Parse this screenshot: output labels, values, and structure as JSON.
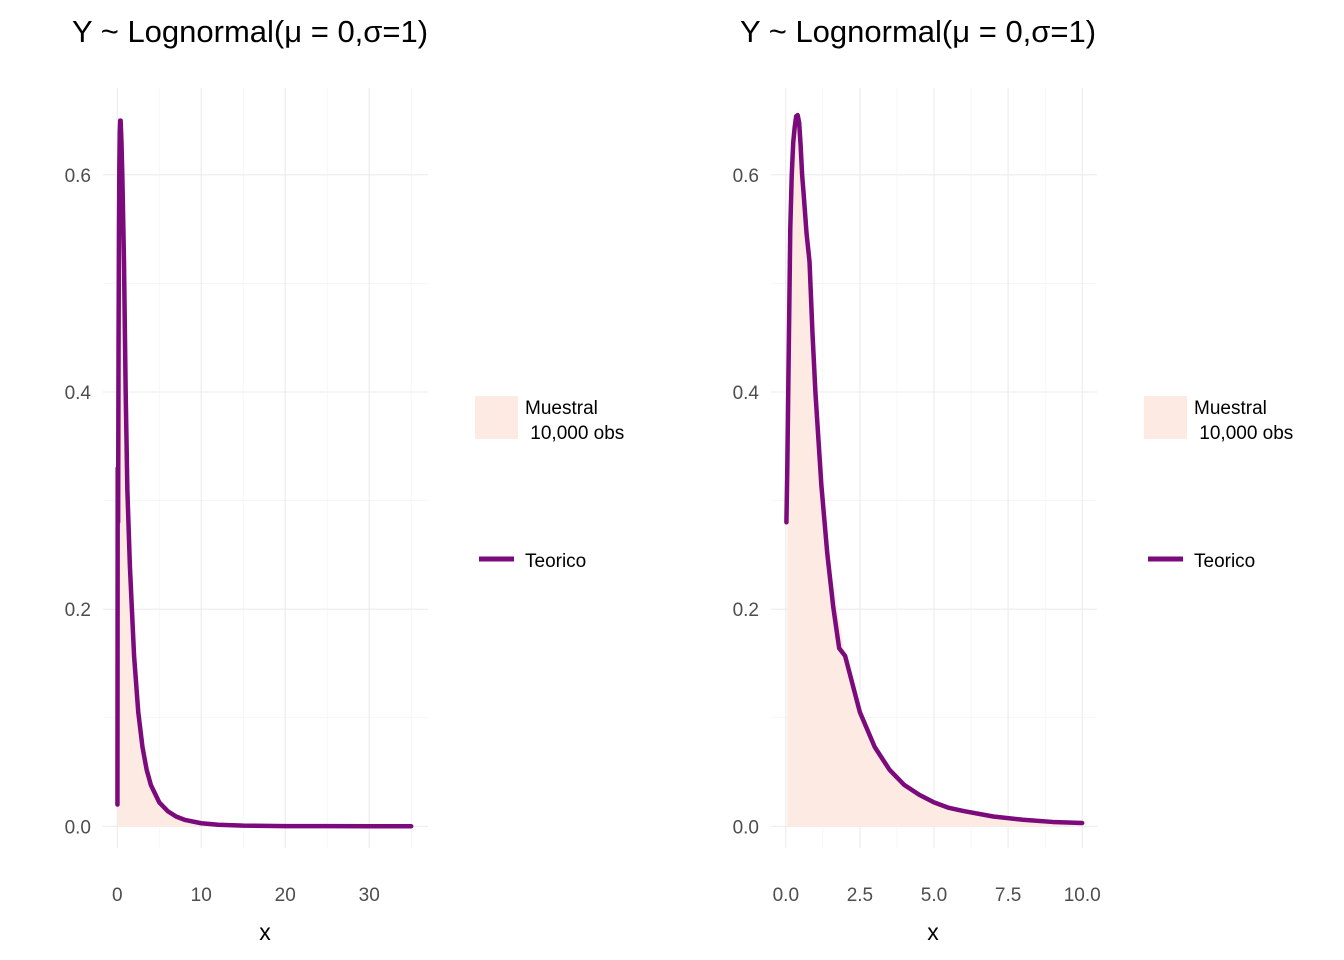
{
  "colors": {
    "histogram_fill": "#FDEAE2",
    "curve": "#7B0A7C",
    "grid": "#EBEBEB",
    "tick_text": "#4D4D4D"
  },
  "legend_labels": {
    "sample_line1": "Muestral",
    "sample_line2": " 10,000 obs",
    "theory": "Teorico"
  },
  "chart_data": [
    {
      "type": "area",
      "title": "Y ~ Lognormal(μ = 0,σ=1)",
      "xlabel": "x",
      "ylabel": "",
      "xlim": [
        -1.7,
        37
      ],
      "ylim": [
        -0.02,
        0.68
      ],
      "xticks": [
        0,
        10,
        20,
        30
      ],
      "xtick_labels": [
        "0",
        "10",
        "20",
        "30"
      ],
      "yticks": [
        0.0,
        0.2,
        0.4,
        0.6
      ],
      "ytick_labels": [
        "0.0",
        "0.2",
        "0.4",
        "0.6"
      ],
      "grid": true,
      "legend_position": "right",
      "series": [
        {
          "name": "Muestral\n 10,000 obs",
          "kind": "histogram",
          "x": [
            0.02,
            0.1,
            0.2,
            0.3,
            0.4,
            0.5,
            0.6,
            0.8,
            1.0,
            1.3,
            1.6,
            2.0,
            2.5,
            3.0,
            3.5,
            4.0,
            5.0,
            6.0,
            8.0,
            10.0,
            15.0,
            20.0,
            25.0,
            30.0,
            35.0
          ],
          "y": [
            0.05,
            0.32,
            0.55,
            0.62,
            0.65,
            0.63,
            0.6,
            0.51,
            0.4,
            0.28,
            0.2,
            0.157,
            0.106,
            0.073,
            0.052,
            0.038,
            0.022,
            0.013,
            0.005,
            0.002,
            0.0005,
            0.0001,
            0.0,
            0.0,
            0.0
          ]
        },
        {
          "name": "Teorico",
          "kind": "line",
          "x": [
            0.02,
            0.05,
            0.1,
            0.15,
            0.2,
            0.25,
            0.3,
            0.35,
            0.4,
            0.5,
            0.6,
            0.7,
            0.8,
            1.0,
            1.2,
            1.5,
            2.0,
            2.5,
            3.0,
            3.5,
            4.0,
            5.0,
            6.0,
            7.0,
            8.0,
            10.0,
            12.0,
            15.0,
            20.0,
            25.0,
            30.0,
            35.0
          ],
          "y": [
            0.02,
            0.33,
            0.28,
            0.44,
            0.55,
            0.61,
            0.64,
            0.65,
            0.65,
            0.63,
            0.6,
            0.56,
            0.52,
            0.4,
            0.31,
            0.24,
            0.157,
            0.105,
            0.073,
            0.052,
            0.038,
            0.022,
            0.014,
            0.009,
            0.006,
            0.0028,
            0.0014,
            0.0006,
            0.0002,
            0.0001,
            0.0,
            0.0
          ]
        }
      ]
    },
    {
      "type": "area",
      "title": "Y ~ Lognormal(μ = 0,σ=1)",
      "xlabel": "x",
      "ylabel": "",
      "xlim": [
        -0.5,
        10.5
      ],
      "ylim": [
        -0.02,
        0.68
      ],
      "xticks": [
        0,
        2.5,
        5,
        7.5,
        10
      ],
      "xtick_labels": [
        "0.0",
        "2.5",
        "5.0",
        "7.5",
        "10.0"
      ],
      "yticks": [
        0.0,
        0.2,
        0.4,
        0.6
      ],
      "ytick_labels": [
        "0.0",
        "0.2",
        "0.4",
        "0.6"
      ],
      "grid": true,
      "legend_position": "right",
      "series": [
        {
          "name": "Muestral\n 10,000 obs",
          "kind": "histogram",
          "x": [
            0.05,
            0.2,
            0.4,
            0.6,
            0.8,
            1.0,
            1.2,
            1.5,
            2.0,
            2.5,
            3.0,
            3.5,
            4.0,
            4.5,
            5.0,
            5.5,
            6.0,
            7.0,
            8.0,
            9.0,
            10.0
          ],
          "y": [
            0.26,
            0.64,
            0.66,
            0.6,
            0.52,
            0.4,
            0.31,
            0.24,
            0.157,
            0.106,
            0.073,
            0.052,
            0.038,
            0.029,
            0.022,
            0.017,
            0.014,
            0.009,
            0.006,
            0.004,
            0.003
          ]
        },
        {
          "name": "Teorico",
          "kind": "line",
          "x": [
            0.02,
            0.05,
            0.1,
            0.15,
            0.2,
            0.25,
            0.3,
            0.35,
            0.4,
            0.45,
            0.5,
            0.55,
            0.6,
            0.7,
            0.8,
            0.9,
            1.0,
            1.2,
            1.4,
            1.6,
            1.8,
            2.0,
            2.5,
            3.0,
            3.5,
            4.0,
            4.5,
            5.0,
            5.5,
            6.0,
            7.0,
            8.0,
            9.0,
            10.0
          ],
          "y": [
            0.28,
            0.33,
            0.44,
            0.55,
            0.6,
            0.63,
            0.644,
            0.654,
            0.655,
            0.648,
            0.627,
            0.6,
            0.583,
            0.546,
            0.52,
            0.454,
            0.399,
            0.314,
            0.251,
            0.202,
            0.164,
            0.157,
            0.105,
            0.073,
            0.052,
            0.038,
            0.029,
            0.022,
            0.017,
            0.014,
            0.009,
            0.006,
            0.004,
            0.003
          ]
        }
      ]
    }
  ]
}
